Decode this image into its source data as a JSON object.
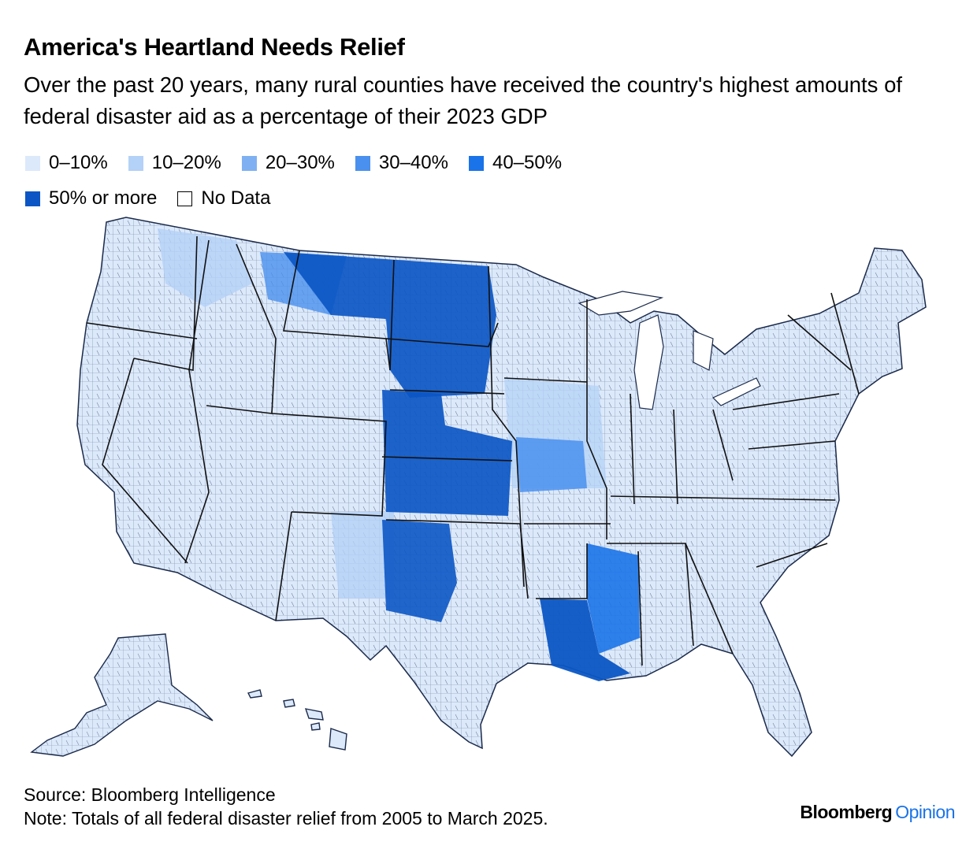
{
  "header": {
    "title": "America's Heartland Needs Relief",
    "subtitle": "Over the past 20 years, many rural counties have received the country's highest amounts of federal disaster aid as a percentage of their 2023 GDP"
  },
  "legend": {
    "items": [
      {
        "label": "0–10%",
        "color": "#dce9fb"
      },
      {
        "label": "10–20%",
        "color": "#b4d1f7"
      },
      {
        "label": "20–30%",
        "color": "#7fb1f2"
      },
      {
        "label": "30–40%",
        "color": "#4a90ee"
      },
      {
        "label": "40–50%",
        "color": "#1a73e8"
      },
      {
        "label": "50% or more",
        "color": "#0b56c4"
      },
      {
        "label": "No Data",
        "color": "#ffffff"
      }
    ]
  },
  "map": {
    "regions": [
      {
        "name": "northern-plains",
        "class": "50% or more"
      },
      {
        "name": "central-plains",
        "class": "50% or more"
      },
      {
        "name": "southern-plains",
        "class": "50% or more"
      },
      {
        "name": "lower-mississippi",
        "class": "50% or more"
      },
      {
        "name": "mississippi-corridor",
        "class": "40–50%"
      },
      {
        "name": "missouri-iowa",
        "class": "30–40%"
      },
      {
        "name": "rest-of-us",
        "class": "0–10%"
      }
    ]
  },
  "footer": {
    "source": "Source: Bloomberg Intelligence",
    "note": "Note: Totals of all federal disaster relief from 2005 to March 2025."
  },
  "brand": {
    "name": "Bloomberg",
    "product": "Opinion"
  }
}
